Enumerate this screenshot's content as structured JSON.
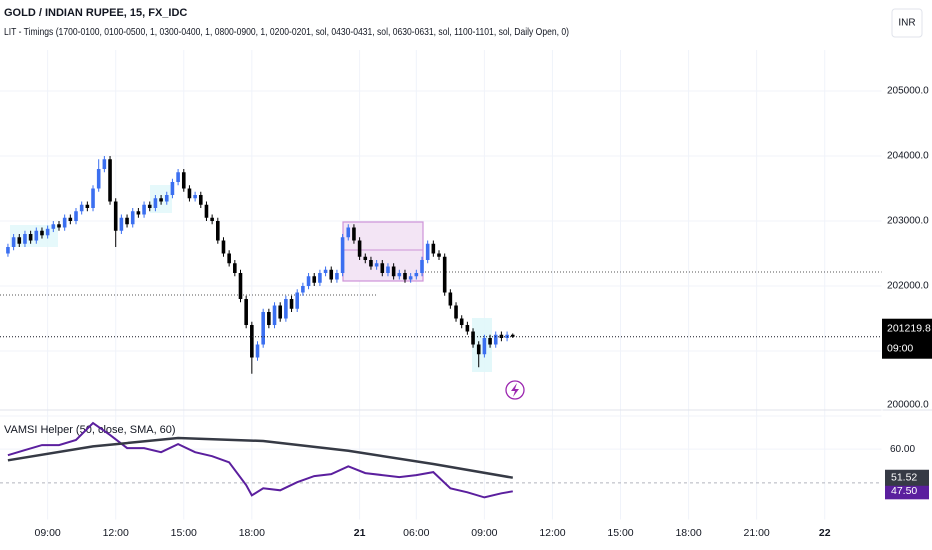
{
  "chart_data": [
    {
      "type": "candlestick",
      "title": "GOLD / INDIAN RUPEE, 15, FX_IDC",
      "subtitle": "LIT - Timings (1700-0100, 0100-0500, 1, 0300-0400, 1, 0800-0900, 1, 0200-0201, sol, 0430-0431, sol, 0630-0631, sol, 1100-1101, sol, Daily Open, 0)",
      "currency": "INR",
      "up_color": "#3b6ff0",
      "down_color": "#000000",
      "xlim": [
        -1.4,
        154.1
      ],
      "xticks": [
        {
          "value": 7,
          "label": "09:00"
        },
        {
          "value": 19,
          "label": "12:00"
        },
        {
          "value": 31,
          "label": "15:00"
        },
        {
          "value": 43,
          "label": "18:00"
        },
        {
          "value": 62,
          "label": "21"
        },
        {
          "value": 72,
          "label": "06:00"
        },
        {
          "value": 84,
          "label": "09:00"
        },
        {
          "value": 96,
          "label": "12:00"
        },
        {
          "value": 108,
          "label": "15:00"
        },
        {
          "value": 120,
          "label": "18:00"
        },
        {
          "value": 132,
          "label": "21:00"
        },
        {
          "value": 144,
          "label": "22"
        }
      ],
      "ylim": [
        200000,
        205250
      ],
      "yticks": [
        {
          "value": 200000,
          "label": "200000.0"
        },
        {
          "value": 201000,
          "label": "201000.0"
        },
        {
          "value": 202000,
          "label": "202000.0"
        },
        {
          "value": 203000,
          "label": "203000.0"
        },
        {
          "value": 204000,
          "label": "204000.0"
        },
        {
          "value": 205000,
          "label": "205000.0"
        }
      ],
      "hidden_ytick_labels": [
        1
      ],
      "last_price": 201219.8,
      "countdown": "09:00",
      "ohlc": [
        [
          202500,
          202650,
          202450,
          202600
        ],
        [
          202600,
          202800,
          202550,
          202750
        ],
        [
          202750,
          202800,
          202600,
          202650
        ],
        [
          202650,
          202850,
          202600,
          202800
        ],
        [
          202800,
          202850,
          202650,
          202700
        ],
        [
          202700,
          202900,
          202650,
          202850
        ],
        [
          202850,
          202900,
          202730,
          202780
        ],
        [
          202780,
          202930,
          202730,
          202880
        ],
        [
          202880,
          203000,
          202830,
          202950
        ],
        [
          202950,
          203000,
          202850,
          202900
        ],
        [
          202900,
          203100,
          202850,
          203050
        ],
        [
          203050,
          203100,
          202950,
          203000
        ],
        [
          203000,
          203200,
          202950,
          203150
        ],
        [
          203150,
          203300,
          203100,
          203250
        ],
        [
          203250,
          203300,
          203150,
          203200
        ],
        [
          203200,
          203550,
          203150,
          203500
        ],
        [
          203500,
          203950,
          203450,
          203800
        ],
        [
          203800,
          204000,
          203750,
          203950
        ],
        [
          203950,
          204000,
          203250,
          203300
        ],
        [
          203300,
          203350,
          202600,
          202850
        ],
        [
          202850,
          203100,
          202800,
          203050
        ],
        [
          203050,
          203100,
          202900,
          202950
        ],
        [
          202950,
          203200,
          202900,
          203150
        ],
        [
          203150,
          203200,
          203050,
          203100
        ],
        [
          203100,
          203300,
          203050,
          203250
        ],
        [
          203250,
          203300,
          203150,
          203200
        ],
        [
          203200,
          203400,
          203150,
          203350
        ],
        [
          203350,
          203400,
          203250,
          203300
        ],
        [
          203300,
          203450,
          203250,
          203400
        ],
        [
          203400,
          203650,
          203350,
          203600
        ],
        [
          203600,
          203800,
          203550,
          203750
        ],
        [
          203750,
          203800,
          203450,
          203500
        ],
        [
          203500,
          203550,
          203300,
          203350
        ],
        [
          203350,
          203450,
          203300,
          203400
        ],
        [
          203400,
          203450,
          203200,
          203250
        ],
        [
          203250,
          203300,
          203000,
          203050
        ],
        [
          203050,
          203100,
          202950,
          203000
        ],
        [
          203000,
          203050,
          202650,
          202700
        ],
        [
          202700,
          202750,
          202450,
          202500
        ],
        [
          202500,
          202550,
          202300,
          202350
        ],
        [
          202350,
          202400,
          202150,
          202200
        ],
        [
          202200,
          202250,
          201750,
          201800
        ],
        [
          201800,
          201850,
          201350,
          201400
        ],
        [
          201400,
          201450,
          200650,
          200900
        ],
        [
          200900,
          201150,
          200850,
          201100
        ],
        [
          201100,
          201650,
          201050,
          201600
        ],
        [
          201600,
          201650,
          201350,
          201400
        ],
        [
          201400,
          201750,
          201350,
          201700
        ],
        [
          201700,
          201750,
          201450,
          201500
        ],
        [
          201500,
          201850,
          201450,
          201800
        ],
        [
          201800,
          201850,
          201600,
          201650
        ],
        [
          201650,
          201950,
          201600,
          201900
        ],
        [
          201900,
          202050,
          201850,
          202000
        ],
        [
          202000,
          202200,
          201950,
          202150
        ],
        [
          202150,
          202200,
          202000,
          202050
        ],
        [
          202050,
          202250,
          202000,
          202200
        ],
        [
          202200,
          202300,
          202150,
          202250
        ],
        [
          202250,
          202300,
          202050,
          202100
        ],
        [
          202100,
          202250,
          202050,
          202200
        ],
        [
          202200,
          202800,
          202150,
          202750
        ],
        [
          202750,
          202950,
          202700,
          202900
        ],
        [
          202900,
          202950,
          202650,
          202700
        ],
        [
          202700,
          202750,
          202400,
          202450
        ],
        [
          202450,
          202500,
          202350,
          202400
        ],
        [
          202400,
          202450,
          202250,
          202300
        ],
        [
          202300,
          202400,
          202250,
          202350
        ],
        [
          202350,
          202400,
          202150,
          202200
        ],
        [
          202200,
          202350,
          202150,
          202300
        ],
        [
          202300,
          202350,
          202100,
          202150
        ],
        [
          202150,
          202250,
          202100,
          202200
        ],
        [
          202200,
          202250,
          202050,
          202100
        ],
        [
          202100,
          202200,
          202050,
          202150
        ],
        [
          202150,
          202250,
          202100,
          202200
        ],
        [
          202200,
          202450,
          202150,
          202400
        ],
        [
          202400,
          202700,
          202350,
          202650
        ],
        [
          202650,
          202700,
          202450,
          202500
        ],
        [
          202500,
          202550,
          202400,
          202450
        ],
        [
          202450,
          202500,
          201850,
          201900
        ],
        [
          201900,
          201950,
          201650,
          201700
        ],
        [
          201700,
          201750,
          201450,
          201500
        ],
        [
          201500,
          201550,
          201350,
          201400
        ],
        [
          201400,
          201450,
          201250,
          201300
        ],
        [
          201300,
          201350,
          201050,
          201100
        ],
        [
          201100,
          201150,
          200750,
          200950
        ],
        [
          200950,
          201250,
          200900,
          201200
        ],
        [
          201200,
          201250,
          201050,
          201100
        ],
        [
          201100,
          201300,
          201050,
          201250
        ],
        [
          201250,
          201300,
          201150,
          201200
        ],
        [
          201200,
          201300,
          201150,
          201250
        ],
        [
          201250,
          201270,
          201200,
          201219.8
        ]
      ]
    },
    {
      "type": "line",
      "title": "VAMSI Helper (50, close, SMA, 60)",
      "xlim": [
        -1.4,
        154.1
      ],
      "ylim": [
        39,
        71
      ],
      "yticks": [
        {
          "value": 60,
          "label": "60.00"
        }
      ],
      "level": 50,
      "series": [
        {
          "color": "#5b1f9e",
          "last_label": "47.50",
          "x": [
            0,
            3,
            6,
            9,
            12,
            15,
            18,
            21,
            24,
            27,
            30,
            33,
            36,
            39,
            42,
            43,
            45,
            48,
            51,
            54,
            57,
            60,
            63,
            66,
            69,
            72,
            75,
            78,
            81,
            84,
            87,
            89
          ],
          "values": [
            58.2,
            59.7,
            61.2,
            61.2,
            62.7,
            67.7,
            64.2,
            60.3,
            60.3,
            59.1,
            61.5,
            59.1,
            57.9,
            56.1,
            49.3,
            46.3,
            48.4,
            47.8,
            50.2,
            52.0,
            52.6,
            54.9,
            52.9,
            52.3,
            51.7,
            52.3,
            53.2,
            48.4,
            47.2,
            45.7,
            46.9,
            47.5
          ]
        },
        {
          "color": "#363a45",
          "last_label": "51.52",
          "x": [
            0,
            15,
            30,
            45,
            60,
            75,
            89
          ],
          "values": [
            56.7,
            60.8,
            63.3,
            62.4,
            59.5,
            55.6,
            51.52
          ]
        }
      ]
    }
  ]
}
